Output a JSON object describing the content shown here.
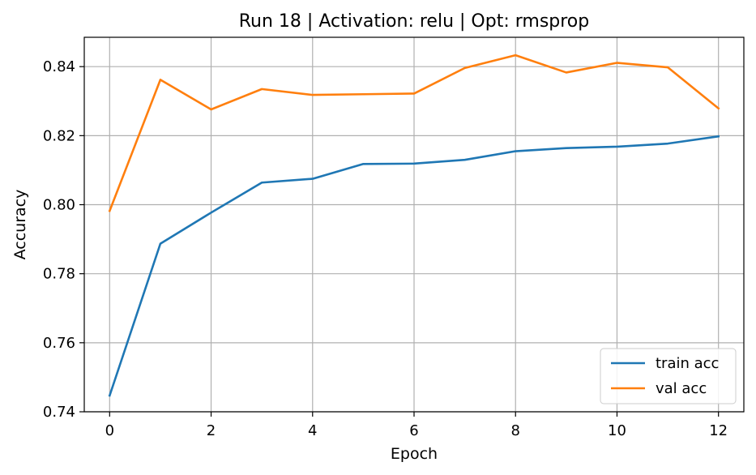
{
  "chart_data": {
    "type": "line",
    "title": "Run 18 | Activation: relu | Opt: rmsprop",
    "xlabel": "Epoch",
    "ylabel": "Accuracy",
    "xlim": [
      -0.5,
      12.5
    ],
    "ylim": [
      0.74,
      0.8485
    ],
    "xticks": [
      0,
      2,
      4,
      6,
      8,
      10,
      12
    ],
    "yticks": [
      0.74,
      0.76,
      0.78,
      0.8,
      0.82,
      0.84
    ],
    "x": [
      0,
      1,
      2,
      3,
      4,
      5,
      6,
      7,
      8,
      9,
      10,
      11,
      12
    ],
    "grid": true,
    "legend_position": "lower-right",
    "series": [
      {
        "name": "train acc",
        "color": "#1f77b4",
        "values": [
          0.7447,
          0.7887,
          0.7977,
          0.8064,
          0.8075,
          0.8118,
          0.8119,
          0.813,
          0.8155,
          0.8164,
          0.8168,
          0.8177,
          0.8198
        ]
      },
      {
        "name": "val acc",
        "color": "#ff7f0e",
        "values": [
          0.7982,
          0.8362,
          0.8276,
          0.8335,
          0.8318,
          0.832,
          0.8322,
          0.8396,
          0.8433,
          0.8383,
          0.8411,
          0.8398,
          0.8279
        ]
      }
    ]
  }
}
